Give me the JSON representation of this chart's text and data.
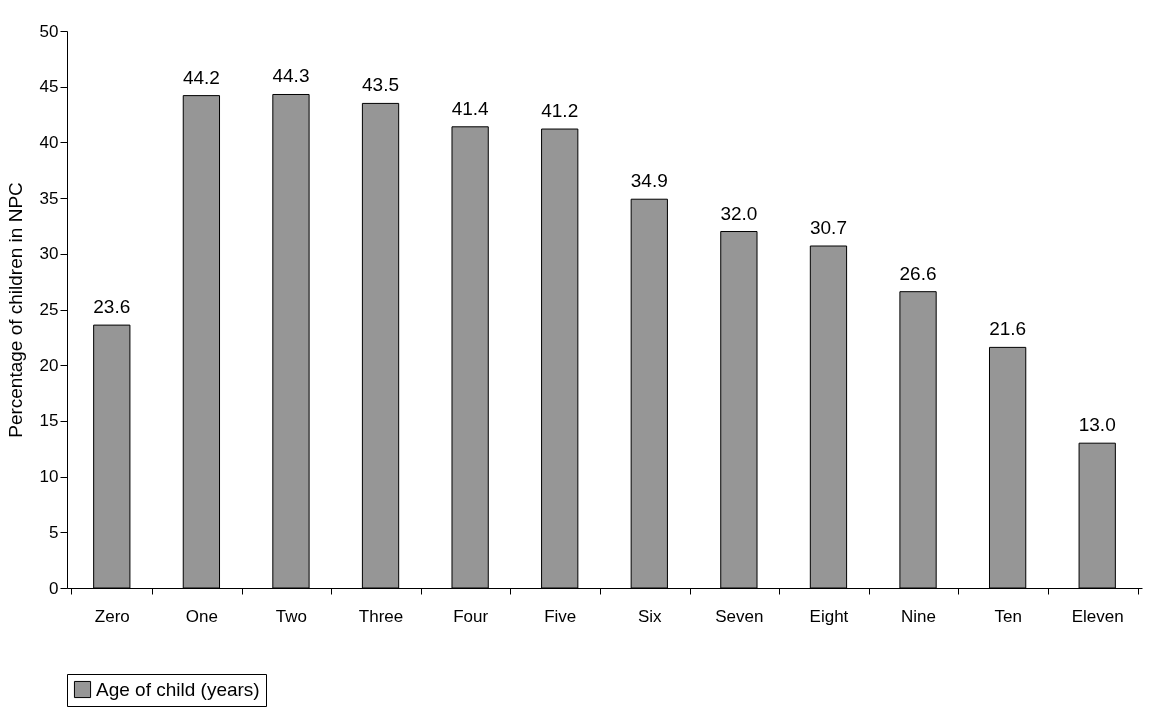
{
  "chart_data": {
    "type": "bar",
    "ylabel": "Percentage of children in NPC",
    "categories": [
      "Zero",
      "One",
      "Two",
      "Three",
      "Four",
      "Five",
      "Six",
      "Seven",
      "Eight",
      "Nine",
      "Ten",
      "Eleven"
    ],
    "series": [
      {
        "name": "Age of child (years)",
        "color": "#969696",
        "values": [
          23.6,
          44.2,
          44.3,
          43.5,
          41.4,
          41.2,
          34.9,
          32.0,
          30.7,
          26.6,
          21.6,
          13.0
        ]
      }
    ],
    "value_labels": [
      "23.6",
      "44.2",
      "44.3",
      "43.5",
      "41.4",
      "41.2",
      "34.9",
      "32.0",
      "30.7",
      "26.6",
      "21.6",
      "13.0"
    ],
    "ylim": [
      0,
      50
    ],
    "yticks": [
      0,
      5,
      10,
      15,
      20,
      25,
      30,
      35,
      40,
      45,
      50
    ],
    "grid": false,
    "legend": "bottom"
  }
}
